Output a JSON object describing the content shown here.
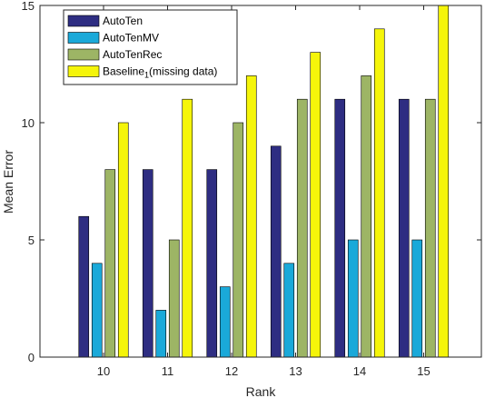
{
  "chart_data": {
    "type": "bar",
    "xlabel": "Rank",
    "ylabel": "Mean Error",
    "ylim": [
      0,
      15
    ],
    "yticks": [
      0,
      5,
      10,
      15
    ],
    "categories": [
      "10",
      "11",
      "12",
      "13",
      "14",
      "15"
    ],
    "grid": false,
    "legend_position": "top-left",
    "series": [
      {
        "name": "AutoTen",
        "color": "#2e2d82",
        "values": [
          6,
          8,
          8,
          9,
          11,
          11
        ]
      },
      {
        "name": "AutoTenMV",
        "color": "#1aa9d9",
        "values": [
          4,
          2,
          3,
          4,
          5,
          5
        ]
      },
      {
        "name": "AutoTenRec",
        "color": "#9db565",
        "values": [
          8,
          5,
          10,
          11,
          12,
          11
        ]
      },
      {
        "name": "Baseline",
        "name_subscript": "1",
        "name_suffix": "(missing data)",
        "color": "#f5f50a",
        "values": [
          10,
          11,
          12,
          13,
          14,
          15
        ]
      }
    ]
  }
}
